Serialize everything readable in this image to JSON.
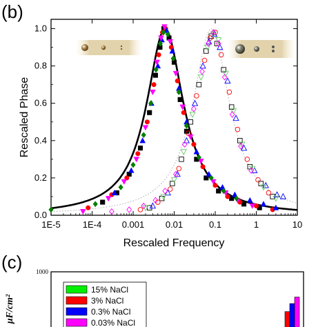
{
  "chart_data": [
    {
      "panel": "(b)",
      "type": "scatter",
      "xlabel": "Rescaled Frequency",
      "ylabel": "Rescaled Phase",
      "x_scale": "log",
      "xlim": [
        1e-05,
        10
      ],
      "ylim": [
        0,
        1.05
      ],
      "x_ticks": [
        "1E-5",
        "1E-4",
        "0.001",
        "0.01",
        "0.1",
        "1",
        "10"
      ],
      "y_ticks": [
        "0.0",
        "0.2",
        "0.4",
        "0.6",
        "0.8",
        "1.0"
      ],
      "colors": {
        "black": "#000000",
        "red": "#ff0000",
        "blue": "#0000ff",
        "green": "#008000",
        "magenta": "#ff00ff",
        "dotted_fit": "#b8b8b8"
      },
      "fit_curves": [
        {
          "style": "solid",
          "color": "#000000",
          "peak_x": 0.006,
          "width_decades": 0.55
        },
        {
          "style": "dotted",
          "color": "#b8b8b8",
          "peak_x": 0.08,
          "width_decades": 0.55
        }
      ],
      "series": [
        {
          "marker": "square",
          "fill": "filled",
          "color": "#000000",
          "points": [
            [
              0.00018,
              0.07
            ],
            [
              0.0004,
              0.12
            ],
            [
              0.0008,
              0.22
            ],
            [
              0.0015,
              0.36
            ],
            [
              0.0025,
              0.55
            ],
            [
              0.0035,
              0.75
            ],
            [
              0.0045,
              0.9
            ],
            [
              0.0056,
              1.0
            ],
            [
              0.0075,
              0.95
            ],
            [
              0.01,
              0.82
            ],
            [
              0.014,
              0.62
            ],
            [
              0.02,
              0.45
            ],
            [
              0.035,
              0.3
            ],
            [
              0.06,
              0.2
            ],
            [
              0.12,
              0.13
            ],
            [
              0.25,
              0.09
            ],
            [
              0.5,
              0.06
            ],
            [
              1.2,
              0.04
            ]
          ]
        },
        {
          "marker": "circle",
          "fill": "filled",
          "color": "#ff0000",
          "points": [
            [
              8e-05,
              0.04
            ],
            [
              0.0003,
              0.11
            ],
            [
              0.0007,
              0.2
            ],
            [
              0.0013,
              0.33
            ],
            [
              0.0022,
              0.5
            ],
            [
              0.0032,
              0.7
            ],
            [
              0.0042,
              0.86
            ],
            [
              0.0052,
              0.98
            ],
            [
              0.0062,
              1.0
            ],
            [
              0.0085,
              0.9
            ],
            [
              0.012,
              0.72
            ],
            [
              0.017,
              0.55
            ],
            [
              0.03,
              0.38
            ],
            [
              0.05,
              0.26
            ],
            [
              0.1,
              0.16
            ],
            [
              0.2,
              0.1
            ],
            [
              0.4,
              0.07
            ],
            [
              1.0,
              0.05
            ],
            [
              2.5,
              0.03
            ]
          ]
        },
        {
          "marker": "triangle-up",
          "fill": "filled",
          "color": "#0000ff",
          "points": [
            [
              0.00035,
              0.12
            ],
            [
              0.0009,
              0.24
            ],
            [
              0.0017,
              0.4
            ],
            [
              0.0028,
              0.6
            ],
            [
              0.004,
              0.8
            ],
            [
              0.005,
              0.94
            ],
            [
              0.0065,
              0.99
            ],
            [
              0.009,
              0.88
            ],
            [
              0.013,
              0.68
            ],
            [
              0.02,
              0.5
            ],
            [
              0.035,
              0.34
            ],
            [
              0.07,
              0.22
            ],
            [
              0.15,
              0.15
            ],
            [
              0.3,
              0.11
            ],
            [
              0.7,
              0.08
            ],
            [
              1.5,
              0.06
            ],
            [
              3.0,
              0.04
            ]
          ]
        },
        {
          "marker": "triangle-down",
          "fill": "filled",
          "color": "#ff00ff",
          "points": [
            [
              6e-05,
              0.02
            ],
            [
              0.00025,
              0.09
            ],
            [
              0.0006,
              0.18
            ],
            [
              0.0012,
              0.3
            ],
            [
              0.002,
              0.47
            ],
            [
              0.003,
              0.66
            ],
            [
              0.0038,
              0.82
            ],
            [
              0.0048,
              0.95
            ],
            [
              0.0058,
              1.01
            ],
            [
              0.008,
              0.93
            ],
            [
              0.011,
              0.76
            ],
            [
              0.016,
              0.58
            ],
            [
              0.025,
              0.42
            ],
            [
              0.045,
              0.29
            ],
            [
              0.09,
              0.18
            ],
            [
              0.18,
              0.12
            ],
            [
              0.35,
              0.08
            ],
            [
              0.8,
              0.05
            ]
          ]
        },
        {
          "marker": "diamond",
          "fill": "filled",
          "color": "#008000",
          "points": [
            [
              1e-05,
              0.03
            ],
            [
              0.00012,
              0.06
            ],
            [
              0.0005,
              0.15
            ],
            [
              0.001,
              0.27
            ],
            [
              0.0018,
              0.43
            ],
            [
              0.0027,
              0.6
            ],
            [
              0.0036,
              0.78
            ],
            [
              0.0046,
              0.92
            ],
            [
              0.0055,
              0.98
            ],
            [
              0.007,
              0.97
            ],
            [
              0.0095,
              0.84
            ],
            [
              0.013,
              0.66
            ],
            [
              0.02,
              0.48
            ],
            [
              0.04,
              0.31
            ],
            [
              0.08,
              0.2
            ],
            [
              0.16,
              0.13
            ],
            [
              0.33,
              0.09
            ]
          ]
        },
        {
          "marker": "square",
          "fill": "open",
          "color": "#000000",
          "points": [
            [
              0.0025,
              0.04
            ],
            [
              0.005,
              0.09
            ],
            [
              0.009,
              0.17
            ],
            [
              0.015,
              0.3
            ],
            [
              0.025,
              0.5
            ],
            [
              0.04,
              0.7
            ],
            [
              0.06,
              0.88
            ],
            [
              0.08,
              0.96
            ],
            [
              0.11,
              0.92
            ],
            [
              0.16,
              0.78
            ],
            [
              0.25,
              0.58
            ],
            [
              0.4,
              0.4
            ],
            [
              0.7,
              0.26
            ],
            [
              1.3,
              0.17
            ],
            [
              2.5,
              0.1
            ]
          ]
        },
        {
          "marker": "circle",
          "fill": "open",
          "color": "#ff0000",
          "points": [
            [
              0.0015,
              0.03
            ],
            [
              0.004,
              0.07
            ],
            [
              0.008,
              0.14
            ],
            [
              0.013,
              0.25
            ],
            [
              0.022,
              0.44
            ],
            [
              0.035,
              0.64
            ],
            [
              0.055,
              0.83
            ],
            [
              0.075,
              0.95
            ],
            [
              0.1,
              0.98
            ],
            [
              0.14,
              0.86
            ],
            [
              0.22,
              0.66
            ],
            [
              0.35,
              0.46
            ],
            [
              0.6,
              0.3
            ],
            [
              1.1,
              0.19
            ],
            [
              2.0,
              0.12
            ]
          ]
        },
        {
          "marker": "triangle-up",
          "fill": "open",
          "color": "#0000ff",
          "points": [
            [
              0.003,
              0.05
            ],
            [
              0.007,
              0.12
            ],
            [
              0.012,
              0.22
            ],
            [
              0.02,
              0.4
            ],
            [
              0.032,
              0.6
            ],
            [
              0.05,
              0.8
            ],
            [
              0.07,
              0.93
            ],
            [
              0.095,
              0.97
            ],
            [
              0.13,
              0.9
            ],
            [
              0.2,
              0.72
            ],
            [
              0.32,
              0.52
            ],
            [
              0.5,
              0.36
            ],
            [
              0.9,
              0.24
            ],
            [
              1.7,
              0.16
            ],
            [
              3.2,
              0.11
            ],
            [
              4.5,
              0.1
            ]
          ]
        },
        {
          "marker": "triangle-down",
          "fill": "open",
          "color": "#66cc66",
          "points": [
            [
              0.002,
              0.04
            ],
            [
              0.0055,
              0.1
            ],
            [
              0.01,
              0.19
            ],
            [
              0.017,
              0.34
            ],
            [
              0.028,
              0.54
            ],
            [
              0.045,
              0.74
            ],
            [
              0.065,
              0.9
            ],
            [
              0.09,
              0.97
            ],
            [
              0.12,
              0.94
            ],
            [
              0.18,
              0.76
            ],
            [
              0.28,
              0.56
            ],
            [
              0.45,
              0.38
            ],
            [
              0.8,
              0.25
            ],
            [
              1.5,
              0.15
            ],
            [
              3.0,
              0.09
            ]
          ]
        },
        {
          "marker": "diamond",
          "fill": "open",
          "color": "#ff00ff",
          "points": [
            [
              0.0003,
              0.02
            ],
            [
              0.0008,
              0.03
            ],
            [
              0.0018,
              0.05
            ],
            [
              0.0035,
              0.08
            ],
            [
              0.006,
              0.13
            ],
            [
              0.011,
              0.22
            ],
            [
              0.018,
              0.38
            ],
            [
              0.03,
              0.57
            ],
            [
              0.048,
              0.77
            ],
            [
              0.068,
              0.92
            ],
            [
              0.09,
              0.98
            ],
            [
              0.12,
              0.92
            ],
            [
              0.17,
              0.74
            ],
            [
              0.26,
              0.54
            ],
            [
              0.42,
              0.37
            ],
            [
              0.75,
              0.24
            ]
          ]
        }
      ]
    },
    {
      "panel": "(c)",
      "type": "bar",
      "y_scale": "log",
      "ytick_top": "1000",
      "ylabel": "μF/cm²",
      "legend": [
        {
          "label": "15% NaCl",
          "color": "#00ee00"
        },
        {
          "label": "3% NaCl",
          "color": "#ff0000"
        },
        {
          "label": "0.3% NaCl",
          "color": "#0000ff"
        },
        {
          "label": "0.03% NaCl",
          "color": "#ff00ff"
        }
      ],
      "visible_bars": [
        {
          "series": "3% NaCl",
          "value": 150
        },
        {
          "series": "0.3% NaCl",
          "value": 220
        },
        {
          "series": "0.03% NaCl",
          "value": 300
        }
      ]
    }
  ]
}
